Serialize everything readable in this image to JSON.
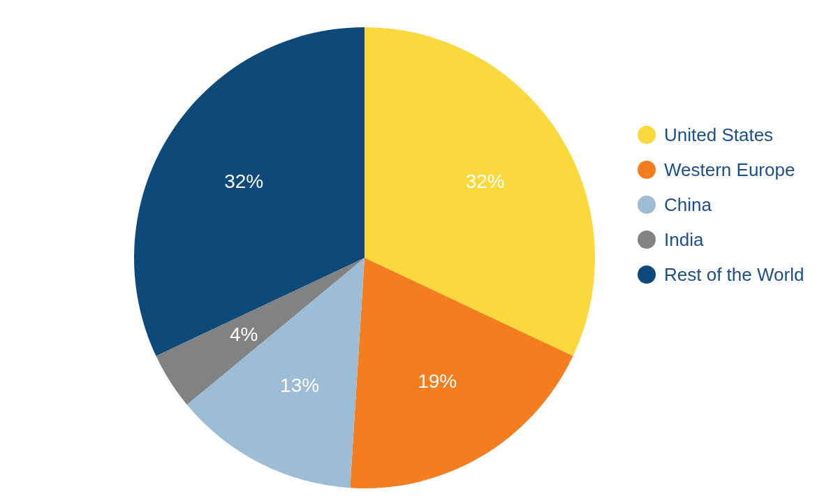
{
  "chart_data": {
    "type": "pie",
    "categories": [
      "United States",
      "Western Europe",
      "China",
      "India",
      "Rest of the World"
    ],
    "values": [
      32,
      19,
      13,
      4,
      32
    ],
    "colors": [
      "#fbd93c",
      "#f47d20",
      "#9dbdd6",
      "#808284",
      "#0d4a7a"
    ],
    "value_labels": [
      "32%",
      "19%",
      "13%",
      "4%",
      "32%"
    ],
    "legend": "right"
  }
}
